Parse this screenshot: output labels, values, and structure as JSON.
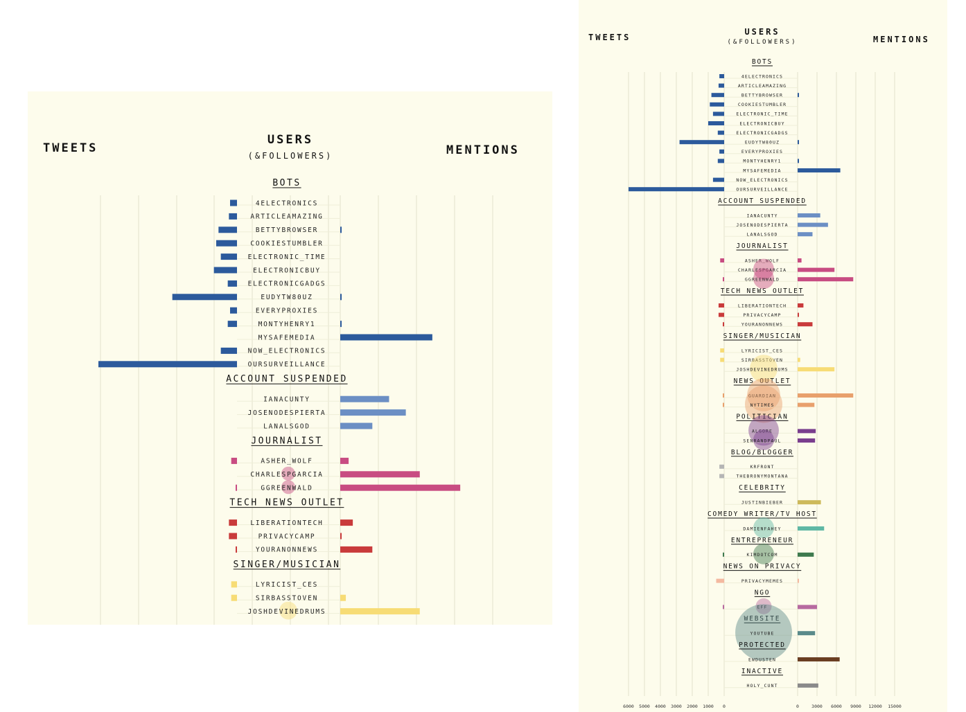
{
  "headers": {
    "tweets": "TWEETS",
    "users": "USERS",
    "users_sub": "(&FOLLOWERS)",
    "mentions": "MENTIONS"
  },
  "chart_data": [
    {
      "type": "bar",
      "layout": "diverging bars: tweets to the left, mentions to the right; bubbles on usernames show followers",
      "grid": true,
      "groups": [
        {
          "name": "BOTS",
          "color": "#2c5a9c",
          "users": [
            {
              "name": "4ELECTRONICS",
              "tweets": 300,
              "mentions": 0
            },
            {
              "name": "ARTICLEAMAZING",
              "tweets": 350,
              "mentions": 0
            },
            {
              "name": "BETTYBROWSER",
              "tweets": 800,
              "mentions": 50
            },
            {
              "name": "COOKIESTUMBLER",
              "tweets": 900,
              "mentions": 0
            },
            {
              "name": "ELECTRONIC_TIME",
              "tweets": 700,
              "mentions": 0
            },
            {
              "name": "ELECTRONICBUY",
              "tweets": 1000,
              "mentions": 0
            },
            {
              "name": "ELECTRONICGADGS",
              "tweets": 400,
              "mentions": 0
            },
            {
              "name": "EUDYTW80UZ",
              "tweets": 2800,
              "mentions": 50
            },
            {
              "name": "EVERYPROXIES",
              "tweets": 300,
              "mentions": 0
            },
            {
              "name": "MONTYHENRY1",
              "tweets": 400,
              "mentions": 50
            },
            {
              "name": "MYSAFEMEDIA",
              "tweets": 0,
              "mentions": 6600
            },
            {
              "name": "NOW_ELECTRONICS",
              "tweets": 700,
              "mentions": 0
            },
            {
              "name": "OURSURVEILLANCE",
              "tweets": 6000,
              "mentions": 0
            }
          ]
        },
        {
          "name": "ACCOUNT SUSPENDED",
          "color": "#6c8fc4",
          "users": [
            {
              "name": "IANACUNTY",
              "tweets": 0,
              "mentions": 3500
            },
            {
              "name": "JOSENODESPIERTA",
              "tweets": 0,
              "mentions": 4700
            },
            {
              "name": "LANALSGOD",
              "tweets": 0,
              "mentions": 2300
            }
          ]
        },
        {
          "name": "JOURNALIST",
          "color": "#c84c82",
          "users": [
            {
              "name": "ASHER_WOLF",
              "tweets": 250,
              "mentions": 600,
              "followers": 0
            },
            {
              "name": "CHARLESPGARCIA",
              "tweets": 0,
              "mentions": 5700,
              "followers": 1
            },
            {
              "name": "GGREENWALD",
              "tweets": 50,
              "mentions": 8600,
              "followers": 1
            }
          ]
        },
        {
          "name": "TECH NEWS OUTLET",
          "color": "#c93b3b",
          "users": [
            {
              "name": "LIBERATIONTECH",
              "tweets": 350,
              "mentions": 900
            },
            {
              "name": "PRIVACYCAMP",
              "tweets": 350,
              "mentions": 100
            },
            {
              "name": "YOURANONNEWS",
              "tweets": 50,
              "mentions": 2300
            }
          ]
        },
        {
          "name": "SINGER/MUSICIAN",
          "color": "#f7dc75",
          "users": [
            {
              "name": "LYRICIST_CES",
              "tweets": 250,
              "mentions": 0
            },
            {
              "name": "SIRBASSTOVEN",
              "tweets": 250,
              "mentions": 400
            },
            {
              "name": "JOSHDEVINEDRUMS",
              "tweets": 0,
              "mentions": 5700,
              "followers": 2
            }
          ]
        },
        {
          "name": "NEWS OUTLET",
          "color": "#e8a06c",
          "users": [
            {
              "name": "GUARDIAN",
              "tweets": 50,
              "mentions": 8600,
              "followers": 3
            },
            {
              "name": "NYTIMES",
              "tweets": 50,
              "mentions": 2600,
              "followers": 4
            }
          ]
        },
        {
          "name": "POLITICIAN",
          "color": "#7a3e8e",
          "users": [
            {
              "name": "ALGORE",
              "tweets": 0,
              "mentions": 2800,
              "followers": 2.5
            },
            {
              "name": "SENRANDPAUL",
              "tweets": 0,
              "mentions": 2700,
              "followers": 1
            }
          ]
        },
        {
          "name": "BLOG/BLOGGER",
          "color": "#b5b5b5",
          "users": [
            {
              "name": "KRFRONT",
              "tweets": 300,
              "mentions": 0
            },
            {
              "name": "THEBRONYMONTANA",
              "tweets": 300,
              "mentions": 0
            }
          ]
        },
        {
          "name": "CELEBRITY",
          "color": "#cdb95a",
          "users": [
            {
              "name": "JUSTINBIEBER",
              "tweets": 0,
              "mentions": 3600
            }
          ]
        },
        {
          "name": "COMEDY WRITER/TV HOST",
          "color": "#5fb8a5",
          "users": [
            {
              "name": "DAMIENFAHEY",
              "tweets": 0,
              "mentions": 4100,
              "followers": 1
            }
          ]
        },
        {
          "name": "ENTREPRENEUR",
          "color": "#3e7a4e",
          "users": [
            {
              "name": "KIMDOTCOM",
              "tweets": 50,
              "mentions": 2500,
              "followers": 1
            }
          ]
        },
        {
          "name": "NEWS ON PRIVACY",
          "color": "#f4b9a0",
          "users": [
            {
              "name": "PRIVACYMEMES",
              "tweets": 500,
              "mentions": 200
            }
          ]
        },
        {
          "name": "NGO",
          "color": "#b76aa0",
          "users": [
            {
              "name": "EFF",
              "tweets": 50,
              "mentions": 3000,
              "followers": 0.5
            }
          ]
        },
        {
          "name": "WEBSITE",
          "color": "#5a8a8a",
          "users": [
            {
              "name": "YOUTUBE",
              "tweets": 0,
              "mentions": 2700,
              "followers": 10
            }
          ]
        },
        {
          "name": "PROTECTED",
          "color": "#6a3e22",
          "users": [
            {
              "name": "EWDUSTEN",
              "tweets": 0,
              "mentions": 6500
            }
          ]
        },
        {
          "name": "INACTIVE",
          "color": "#8a8a8a",
          "users": [
            {
              "name": "HOLY_CUNT",
              "tweets": 0,
              "mentions": 3200
            }
          ]
        }
      ],
      "tweets_axis_ticks": [
        "6000",
        "5000",
        "4000",
        "3000",
        "2000",
        "1000",
        "0"
      ],
      "mentions_axis_ticks": [
        "0",
        "3000",
        "6000",
        "9000",
        "12000",
        "15000"
      ],
      "tweets_xlim": [
        0,
        6000
      ],
      "mentions_xlim": [
        0,
        15000
      ]
    }
  ]
}
